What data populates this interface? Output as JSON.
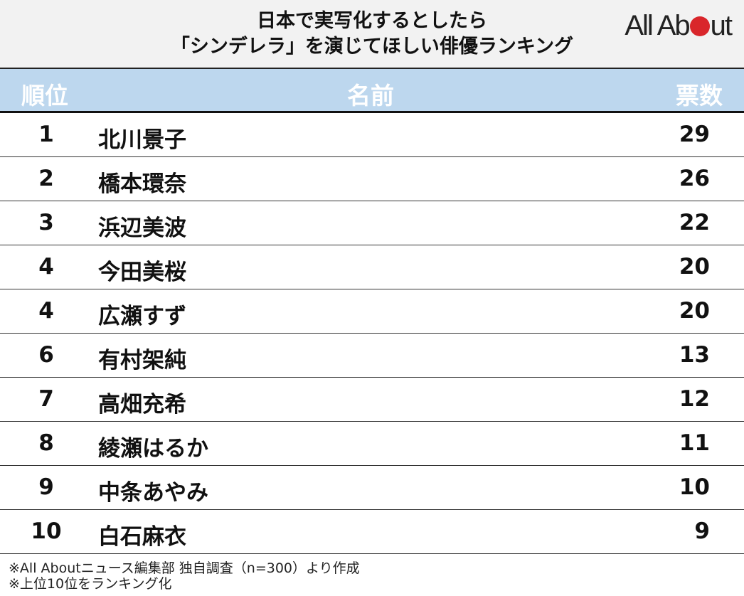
{
  "title": {
    "line1": "日本で実写化するとしたら",
    "line2": "「シンデレラ」を演じてほしい俳優ランキング"
  },
  "logo": {
    "text_a": "All Ab",
    "text_b": "ut",
    "full": "All About",
    "accent": "#d9262b"
  },
  "header": {
    "rank": "順位",
    "name": "名前",
    "votes": "票数",
    "bg": "#bdd7ee"
  },
  "rows": [
    {
      "rank": "1",
      "name": "北川景子",
      "votes": "29"
    },
    {
      "rank": "2",
      "name": "橋本環奈",
      "votes": "26"
    },
    {
      "rank": "3",
      "name": "浜辺美波",
      "votes": "22"
    },
    {
      "rank": "4",
      "name": "今田美桜",
      "votes": "20"
    },
    {
      "rank": "4",
      "name": "広瀬すず",
      "votes": "20"
    },
    {
      "rank": "6",
      "name": "有村架純",
      "votes": "13"
    },
    {
      "rank": "7",
      "name": "高畑充希",
      "votes": "12"
    },
    {
      "rank": "8",
      "name": "綾瀬はるか",
      "votes": "11"
    },
    {
      "rank": "9",
      "name": "中条あやみ",
      "votes": "10"
    },
    {
      "rank": "10",
      "name": "白石麻衣",
      "votes": "9"
    }
  ],
  "footer": {
    "note1": "※All Aboutニュース編集部 独自調査（n=300）より作成",
    "note2": "※上位10位をランキング化"
  }
}
